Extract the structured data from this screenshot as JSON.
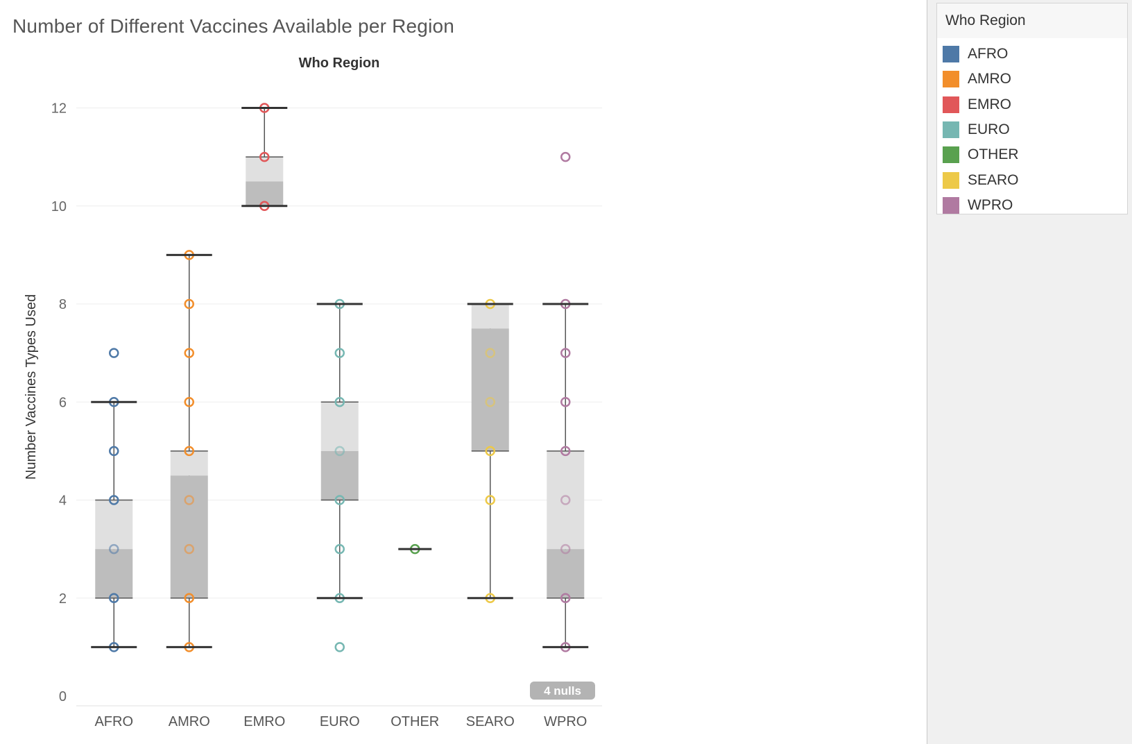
{
  "title": "Number of Different Vaccines Available per Region",
  "chart_data": {
    "type": "box",
    "title": "Number of Different Vaccines Available per Region",
    "column_header": "Who Region",
    "xlabel": "",
    "ylabel": "Number Vaccines Types Used",
    "ylim": [
      0,
      12.9
    ],
    "yticks": [
      0,
      2,
      4,
      6,
      8,
      10,
      12
    ],
    "grid": true,
    "categories": [
      "AFRO",
      "AMRO",
      "EMRO",
      "EURO",
      "OTHER",
      "SEARO",
      "WPRO"
    ],
    "colors": {
      "AFRO": "#4e79a7",
      "AMRO": "#f28e2b",
      "EMRO": "#e15759",
      "EURO": "#76b7b2",
      "OTHER": "#59a14f",
      "SEARO": "#edc948",
      "WPRO": "#b07aa1"
    },
    "boxes": [
      {
        "category": "AFRO",
        "min": 1,
        "q1": 2,
        "median": 3,
        "q3": 4,
        "max": 6,
        "points": [
          1,
          2,
          3,
          4,
          5,
          6,
          7
        ]
      },
      {
        "category": "AMRO",
        "min": 1,
        "q1": 2,
        "median": 4.5,
        "q3": 5,
        "max": 9,
        "points": [
          1,
          2,
          3,
          4,
          5,
          6,
          7,
          8,
          9
        ]
      },
      {
        "category": "EMRO",
        "min": 10,
        "q1": 10,
        "median": 10.5,
        "q3": 11,
        "max": 12,
        "points": [
          10,
          11,
          12
        ]
      },
      {
        "category": "EURO",
        "min": 2,
        "q1": 4,
        "median": 5,
        "q3": 6,
        "max": 8,
        "points": [
          1,
          2,
          3,
          4,
          5,
          6,
          7,
          8
        ]
      },
      {
        "category": "OTHER",
        "min": 3,
        "q1": 3,
        "median": 3,
        "q3": 3,
        "max": 3,
        "points": [
          3
        ]
      },
      {
        "category": "SEARO",
        "min": 2,
        "q1": 5,
        "median": 7.5,
        "q3": 8,
        "max": 8,
        "points": [
          2,
          4,
          5,
          6,
          7,
          8
        ]
      },
      {
        "category": "WPRO",
        "min": 1,
        "q1": 2,
        "median": 3,
        "q3": 5,
        "max": 8,
        "points": [
          1,
          2,
          3,
          4,
          5,
          6,
          7,
          8,
          11
        ]
      }
    ],
    "null_indicator": "4 nulls"
  },
  "legend": {
    "title": "Who Region",
    "items": [
      {
        "label": "AFRO",
        "color": "#4e79a7"
      },
      {
        "label": "AMRO",
        "color": "#f28e2b"
      },
      {
        "label": "EMRO",
        "color": "#e15759"
      },
      {
        "label": "EURO",
        "color": "#76b7b2"
      },
      {
        "label": "OTHER",
        "color": "#59a14f"
      },
      {
        "label": "SEARO",
        "color": "#edc948"
      },
      {
        "label": "WPRO",
        "color": "#b07aa1"
      }
    ]
  }
}
